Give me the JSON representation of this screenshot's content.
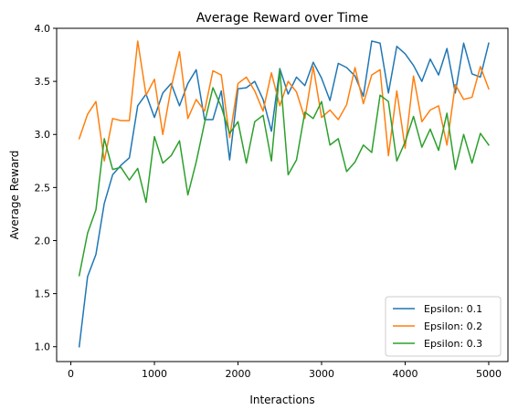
{
  "chart_data": {
    "type": "line",
    "title": "Average Reward over Time",
    "xlabel": "Interactions",
    "ylabel": "Average Reward",
    "xlim": [
      -170,
      5230
    ],
    "ylim": [
      0.86,
      4.0
    ],
    "xticks": [
      0,
      1000,
      2000,
      3000,
      4000,
      5000
    ],
    "xtick_labels": [
      "0",
      "1000",
      "2000",
      "3000",
      "4000",
      "5000"
    ],
    "yticks": [
      1.0,
      1.5,
      2.0,
      2.5,
      3.0,
      3.5,
      4.0
    ],
    "ytick_labels": [
      "1.0",
      "1.5",
      "2.0",
      "2.5",
      "3.0",
      "3.5",
      "4.0"
    ],
    "grid": false,
    "legend_position": "lower-right",
    "x": [
      100,
      200,
      300,
      400,
      500,
      600,
      700,
      800,
      900,
      1000,
      1100,
      1200,
      1300,
      1400,
      1500,
      1600,
      1700,
      1800,
      1900,
      2000,
      2100,
      2200,
      2300,
      2400,
      2500,
      2600,
      2700,
      2800,
      2900,
      3000,
      3100,
      3200,
      3300,
      3400,
      3500,
      3600,
      3700,
      3800,
      3900,
      4000,
      4100,
      4200,
      4300,
      4400,
      4500,
      4600,
      4700,
      4800,
      4900,
      5000
    ],
    "series": [
      {
        "name": "Epsilon: 0.1",
        "color": "#1f77b4",
        "values": [
          1.0,
          1.66,
          1.87,
          2.35,
          2.62,
          2.71,
          2.78,
          3.27,
          3.38,
          3.16,
          3.39,
          3.48,
          3.27,
          3.48,
          3.61,
          3.14,
          3.14,
          3.41,
          2.76,
          3.43,
          3.44,
          3.5,
          3.33,
          3.03,
          3.62,
          3.38,
          3.54,
          3.46,
          3.68,
          3.53,
          3.32,
          3.67,
          3.63,
          3.55,
          3.36,
          3.88,
          3.86,
          3.39,
          3.83,
          3.76,
          3.65,
          3.5,
          3.71,
          3.56,
          3.81,
          3.39,
          3.86,
          3.57,
          3.54,
          3.86
        ]
      },
      {
        "name": "Epsilon: 0.2",
        "color": "#ff7f0e",
        "values": [
          2.96,
          3.19,
          3.31,
          2.75,
          3.15,
          3.13,
          3.13,
          3.88,
          3.37,
          3.52,
          3.0,
          3.44,
          3.78,
          3.15,
          3.33,
          3.22,
          3.6,
          3.56,
          2.97,
          3.48,
          3.54,
          3.41,
          3.22,
          3.58,
          3.27,
          3.5,
          3.4,
          3.15,
          3.64,
          3.16,
          3.23,
          3.14,
          3.28,
          3.63,
          3.29,
          3.56,
          3.61,
          2.8,
          3.41,
          2.87,
          3.55,
          3.12,
          3.23,
          3.27,
          2.9,
          3.47,
          3.33,
          3.35,
          3.64,
          3.43
        ]
      },
      {
        "name": "Epsilon: 0.3",
        "color": "#2ca02c",
        "values": [
          1.67,
          2.07,
          2.29,
          2.96,
          2.67,
          2.69,
          2.57,
          2.68,
          2.36,
          2.98,
          2.73,
          2.8,
          2.94,
          2.43,
          2.74,
          3.11,
          3.44,
          3.26,
          3.01,
          3.12,
          2.73,
          3.12,
          3.18,
          2.75,
          3.61,
          2.62,
          2.76,
          3.21,
          3.15,
          3.31,
          2.9,
          2.96,
          2.65,
          2.74,
          2.9,
          2.83,
          3.37,
          3.31,
          2.75,
          2.93,
          3.17,
          2.88,
          3.05,
          2.85,
          3.2,
          2.67,
          3.0,
          2.73,
          3.01,
          2.9
        ]
      }
    ]
  }
}
